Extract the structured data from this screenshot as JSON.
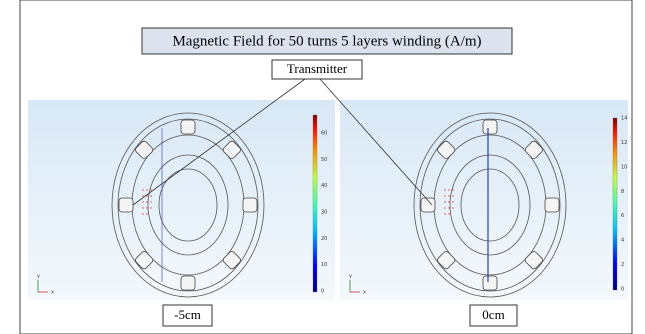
{
  "title": "Magnetic Field for 50 turns 5 layers winding (A/m)",
  "callout": "Transmitter",
  "panels": [
    {
      "label": "-5cm",
      "colorbar_ticks": [
        0,
        10,
        20,
        30,
        40,
        50,
        60
      ],
      "axis_labels": [
        "y",
        "x"
      ]
    },
    {
      "label": "0cm",
      "colorbar_ticks": [
        0,
        2,
        4,
        6,
        8,
        10,
        12,
        14
      ],
      "axis_labels": [
        "y",
        "x"
      ]
    }
  ]
}
